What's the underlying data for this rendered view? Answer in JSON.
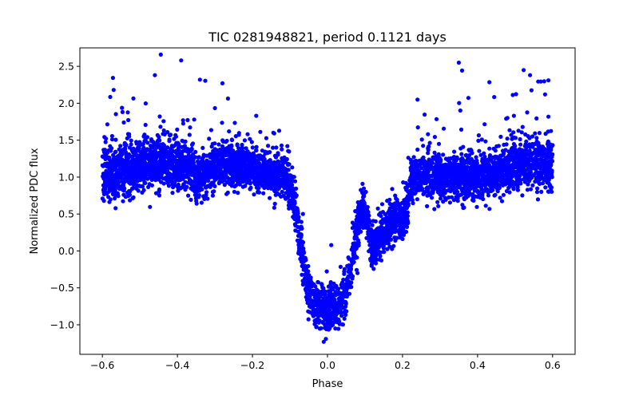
{
  "chart_data": {
    "type": "scatter",
    "title": "TIC 0281948821, period 0.1121 days",
    "xlabel": "Phase",
    "ylabel": "Normalized PDC flux",
    "xlim": [
      -0.66,
      0.66
    ],
    "ylim": [
      -1.4,
      2.75
    ],
    "xticks": [
      -0.6,
      -0.4,
      -0.2,
      0.0,
      0.2,
      0.4,
      0.6
    ],
    "xtick_labels": [
      "−0.6",
      "−0.4",
      "−0.2",
      "0.0",
      "0.2",
      "0.4",
      "0.6"
    ],
    "yticks": [
      -1.0,
      -0.5,
      0.0,
      0.5,
      1.0,
      1.5,
      2.0,
      2.5
    ],
    "ytick_labels": [
      "−1.0",
      "−0.5",
      "0.0",
      "0.5",
      "1.0",
      "1.5",
      "2.0",
      "2.5"
    ],
    "marker_color": "#0000ff",
    "phase_range": [
      -0.6,
      0.6
    ],
    "baseline_flux": 1.0,
    "primary_eclipse": {
      "phase": 0.0,
      "min_flux": -0.8,
      "width": 0.19
    },
    "secondary_eclipse": {
      "phase": 0.15,
      "min_flux": -0.1,
      "width": 0.09
    },
    "secondary_dip_features": [
      {
        "phase": 0.12,
        "min_flux": 0.2
      },
      {
        "phase": 0.2,
        "min_flux": 0.3
      }
    ],
    "outliers": [
      {
        "x": -0.39,
        "y": 2.58
      },
      {
        "x": 0.35,
        "y": 2.55
      },
      {
        "x": -0.46,
        "y": 2.38
      },
      {
        "x": 0.54,
        "y": 2.38
      },
      {
        "x": -0.34,
        "y": 2.32
      },
      {
        "x": -0.28,
        "y": 2.27
      },
      {
        "x": -0.57,
        "y": 2.18
      },
      {
        "x": 0.58,
        "y": 2.12
      },
      {
        "x": 0.24,
        "y": 2.05
      },
      {
        "x": -0.19,
        "y": 1.83
      },
      {
        "x": 0.01,
        "y": 0.08
      },
      {
        "x": 0.08,
        "y": -0.3
      },
      {
        "x": -0.01,
        "y": -1.23
      }
    ],
    "n_points": 5200
  }
}
